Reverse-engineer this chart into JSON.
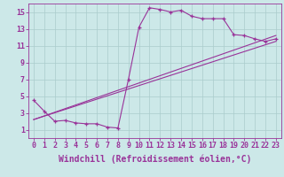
{
  "background_color": "#cce8e8",
  "line_color": "#993399",
  "grid_color": "#aacccc",
  "xlabel": "Windchill (Refroidissement éolien,°C)",
  "xlabel_fontsize": 7.0,
  "tick_fontsize": 6.0,
  "xlim": [
    -0.5,
    23.5
  ],
  "ylim": [
    0,
    16
  ],
  "yticks": [
    1,
    3,
    5,
    7,
    9,
    11,
    13,
    15
  ],
  "xticks": [
    0,
    1,
    2,
    3,
    4,
    5,
    6,
    7,
    8,
    9,
    10,
    11,
    12,
    13,
    14,
    15,
    16,
    17,
    18,
    19,
    20,
    21,
    22,
    23
  ],
  "series1_x": [
    0,
    1,
    2,
    3,
    4,
    5,
    6,
    7,
    8,
    9,
    10,
    11,
    12,
    13,
    14,
    15,
    16,
    17,
    18,
    19,
    20,
    21,
    22,
    23
  ],
  "series1_y": [
    4.5,
    3.2,
    2.0,
    2.1,
    1.8,
    1.7,
    1.7,
    1.3,
    1.2,
    7.0,
    13.2,
    15.5,
    15.3,
    15.0,
    15.2,
    14.5,
    14.2,
    14.2,
    14.2,
    12.3,
    12.2,
    11.8,
    11.5,
    11.8
  ],
  "series2_x": [
    0,
    23
  ],
  "series2_y": [
    2.2,
    12.2
  ],
  "series3_x": [
    0,
    23
  ],
  "series3_y": [
    2.2,
    11.5
  ],
  "figwidth": 3.2,
  "figheight": 2.0,
  "dpi": 100
}
